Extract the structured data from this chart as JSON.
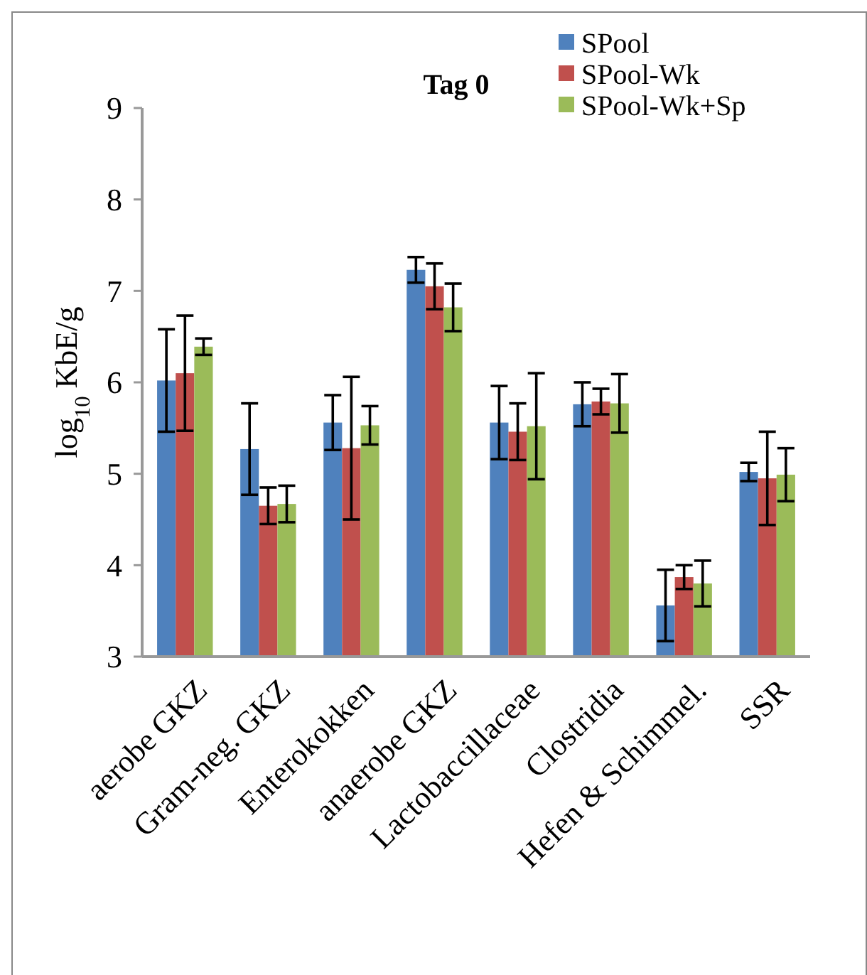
{
  "chart_data": {
    "type": "bar",
    "title": "Tag 0",
    "ylabel": "log$_{10}$ KbE/g",
    "categories": [
      "aerobe GKZ",
      "Gram-neg. GKZ",
      "Enterokokken",
      "anaerobe GKZ",
      "Lactobaccillaceae",
      "Clostridia",
      "Hefen & Schimmel.",
      "SSR"
    ],
    "series": [
      {
        "name": "SPool",
        "color": "#4f81bd",
        "values": [
          6.02,
          5.27,
          5.56,
          7.23,
          5.56,
          5.76,
          3.56,
          5.02
        ],
        "errors": [
          0.56,
          0.5,
          0.3,
          0.14,
          0.4,
          0.24,
          0.39,
          0.1
        ]
      },
      {
        "name": "SPool-Wk",
        "color": "#c0504d",
        "values": [
          6.1,
          4.65,
          5.28,
          7.05,
          5.46,
          5.79,
          3.87,
          4.95
        ],
        "errors": [
          0.63,
          0.2,
          0.78,
          0.25,
          0.31,
          0.14,
          0.13,
          0.51
        ]
      },
      {
        "name": "SPool-Wk+Sp",
        "color": "#9bbb59",
        "values": [
          6.39,
          4.67,
          5.53,
          6.82,
          5.52,
          5.77,
          3.8,
          4.99
        ],
        "errors": [
          0.09,
          0.2,
          0.21,
          0.26,
          0.58,
          0.32,
          0.25,
          0.29
        ]
      }
    ],
    "ylim": [
      3,
      9
    ],
    "yticks": [
      3,
      4,
      5,
      6,
      7,
      8,
      9
    ],
    "grid": false,
    "legend": "top right"
  }
}
